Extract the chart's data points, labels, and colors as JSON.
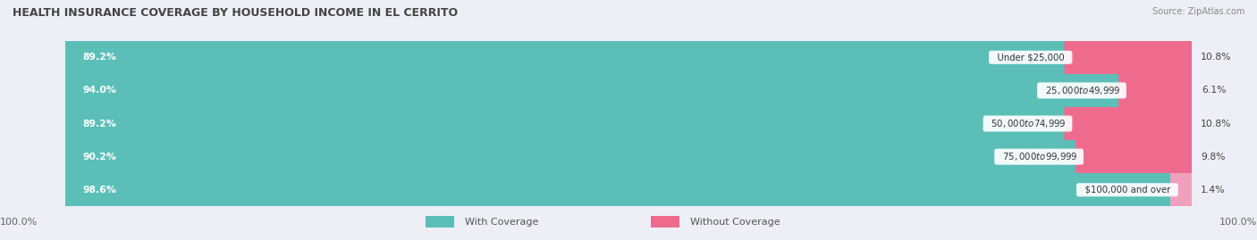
{
  "title": "HEALTH INSURANCE COVERAGE BY HOUSEHOLD INCOME IN EL CERRITO",
  "source": "Source: ZipAtlas.com",
  "categories": [
    "Under $25,000",
    "$25,000 to $49,999",
    "$50,000 to $74,999",
    "$75,000 to $99,999",
    "$100,000 and over"
  ],
  "with_coverage": [
    89.2,
    94.0,
    89.2,
    90.2,
    98.6
  ],
  "without_coverage": [
    10.8,
    6.1,
    10.8,
    9.8,
    1.4
  ],
  "color_with": "#5BBFB8",
  "color_without": "#EE6B8E",
  "color_without_last": "#F0A0BC",
  "row_bg_light": "#F0F0F7",
  "row_bg_dark": "#E5E5EF",
  "fig_bg": "#EEEEF6",
  "figsize": [
    14.06,
    2.69
  ],
  "dpi": 100,
  "bottom_label": "100.0%",
  "legend_with": "With Coverage",
  "legend_without": "Without Coverage",
  "title_fontsize": 9.0,
  "bar_fontsize": 7.8,
  "legend_fontsize": 8.0
}
